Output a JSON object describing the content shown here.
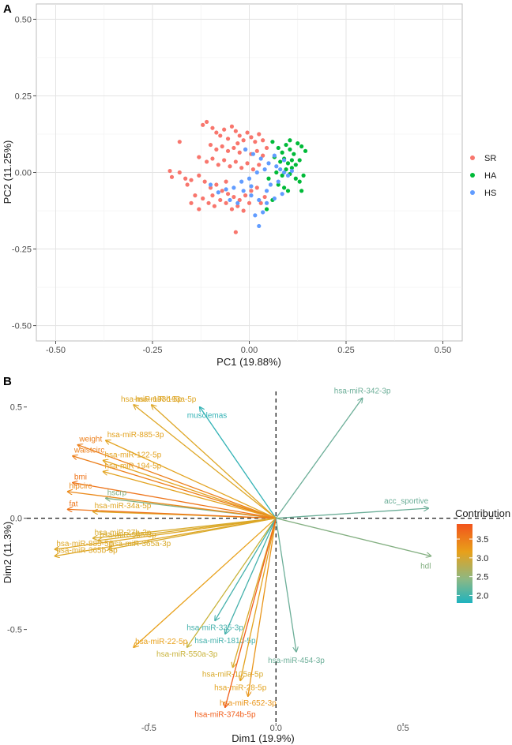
{
  "chart_data": [
    {
      "panel": "A",
      "type": "scatter",
      "xlabel": "PC1 (19.88%)",
      "ylabel": "PC2 (11.25%)",
      "xlim": [
        -0.55,
        0.55
      ],
      "ylim": [
        -0.55,
        0.55
      ],
      "x_ticks": [
        -0.5,
        -0.25,
        0,
        0.25,
        0.5
      ],
      "x_tick_labels": [
        "-0.50",
        "-0.25",
        "0.00",
        "0.25",
        "0.50"
      ],
      "y_ticks": [
        0.5,
        0.25,
        0,
        -0.25,
        -0.5
      ],
      "y_tick_labels": [
        "0.50",
        "0.25",
        "0.00",
        "-0.25",
        "-0.50"
      ],
      "grid": true,
      "legend_position": "right",
      "series": [
        {
          "name": "SR",
          "color": "#F8766D",
          "points": [
            [
              -0.12,
              0.155
            ],
            [
              -0.11,
              0.165
            ],
            [
              -0.095,
              0.145
            ],
            [
              -0.085,
              0.13
            ],
            [
              -0.075,
              0.12
            ],
            [
              -0.065,
              0.14
            ],
            [
              -0.055,
              0.11
            ],
            [
              -0.045,
              0.15
            ],
            [
              -0.035,
              0.135
            ],
            [
              -0.025,
              0.12
            ],
            [
              -0.015,
              0.105
            ],
            [
              -0.005,
              0.13
            ],
            [
              0.005,
              0.115
            ],
            [
              0.015,
              0.1
            ],
            [
              0.025,
              0.125
            ],
            [
              0.035,
              0.105
            ],
            [
              0.045,
              0.08
            ],
            [
              -0.1,
              0.09
            ],
            [
              -0.085,
              0.075
            ],
            [
              -0.07,
              0.085
            ],
            [
              -0.055,
              0.07
            ],
            [
              -0.04,
              0.08
            ],
            [
              -0.025,
              0.065
            ],
            [
              -0.01,
              0.075
            ],
            [
              0.005,
              0.06
            ],
            [
              0.02,
              0.07
            ],
            [
              0.035,
              0.055
            ],
            [
              -0.13,
              0.05
            ],
            [
              -0.11,
              0.035
            ],
            [
              -0.095,
              0.045
            ],
            [
              -0.08,
              0.025
            ],
            [
              -0.065,
              0.04
            ],
            [
              -0.05,
              0.02
            ],
            [
              -0.035,
              0.035
            ],
            [
              -0.02,
              0.015
            ],
            [
              -0.005,
              0.03
            ],
            [
              0.01,
              0.01
            ],
            [
              0.025,
              0.025
            ],
            [
              -0.205,
              0.005
            ],
            [
              -0.18,
              0.0
            ],
            [
              -0.165,
              -0.02
            ],
            [
              -0.15,
              -0.025
            ],
            [
              -0.2,
              -0.015
            ],
            [
              -0.13,
              -0.01
            ],
            [
              -0.115,
              -0.03
            ],
            [
              -0.1,
              -0.05
            ],
            [
              -0.085,
              -0.04
            ],
            [
              -0.07,
              -0.06
            ],
            [
              -0.055,
              -0.07
            ],
            [
              -0.04,
              -0.08
            ],
            [
              -0.025,
              -0.09
            ],
            [
              -0.01,
              -0.075
            ],
            [
              0.005,
              -0.06
            ],
            [
              0.02,
              -0.05
            ],
            [
              -0.12,
              -0.085
            ],
            [
              -0.105,
              -0.1
            ],
            [
              -0.09,
              -0.11
            ],
            [
              -0.075,
              -0.09
            ],
            [
              -0.06,
              -0.1
            ],
            [
              -0.045,
              -0.12
            ],
            [
              -0.03,
              -0.11
            ],
            [
              -0.015,
              -0.125
            ],
            [
              0.0,
              -0.1
            ],
            [
              -0.14,
              -0.075
            ],
            [
              -0.15,
              -0.1
            ],
            [
              -0.16,
              -0.04
            ],
            [
              -0.13,
              -0.12
            ],
            [
              -0.18,
              0.1
            ],
            [
              -0.035,
              -0.195
            ],
            [
              0.03,
              -0.1
            ],
            [
              0.04,
              -0.08
            ],
            [
              -0.095,
              -0.075
            ],
            [
              -0.06,
              -0.03
            ],
            [
              -0.03,
              0.095
            ]
          ]
        },
        {
          "name": "HA",
          "color": "#00BA38",
          "points": [
            [
              0.06,
              0.1
            ],
            [
              0.075,
              0.08
            ],
            [
              0.085,
              0.065
            ],
            [
              0.095,
              0.09
            ],
            [
              0.105,
              0.075
            ],
            [
              0.115,
              0.06
            ],
            [
              0.125,
              0.095
            ],
            [
              0.135,
              0.085
            ],
            [
              0.145,
              0.07
            ],
            [
              0.065,
              0.05
            ],
            [
              0.08,
              0.035
            ],
            [
              0.09,
              0.045
            ],
            [
              0.1,
              0.03
            ],
            [
              0.11,
              0.04
            ],
            [
              0.12,
              0.025
            ],
            [
              0.13,
              0.04
            ],
            [
              0.07,
              0.0
            ],
            [
              0.085,
              -0.01
            ],
            [
              0.095,
              0.01
            ],
            [
              0.105,
              -0.005
            ],
            [
              0.12,
              -0.02
            ],
            [
              0.13,
              -0.03
            ],
            [
              0.14,
              -0.01
            ],
            [
              0.075,
              -0.04
            ],
            [
              0.09,
              -0.05
            ],
            [
              0.1,
              -0.06
            ],
            [
              0.06,
              -0.09
            ],
            [
              0.045,
              -0.12
            ],
            [
              0.135,
              -0.06
            ],
            [
              0.105,
              0.105
            ],
            [
              0.05,
              -0.02
            ],
            [
              0.11,
              0.015
            ]
          ]
        },
        {
          "name": "HS",
          "color": "#619CFF",
          "points": [
            [
              -0.01,
              0.075
            ],
            [
              0.01,
              0.06
            ],
            [
              0.03,
              0.045
            ],
            [
              0.05,
              0.03
            ],
            [
              0.07,
              0.02
            ],
            [
              0.08,
              0.01
            ],
            [
              0.09,
              0.0
            ],
            [
              0.1,
              -0.01
            ],
            [
              0.11,
              0.005
            ],
            [
              0.04,
              0.01
            ],
            [
              0.02,
              0.0
            ],
            [
              0.0,
              -0.02
            ],
            [
              -0.02,
              -0.03
            ],
            [
              -0.04,
              -0.05
            ],
            [
              -0.06,
              -0.055
            ],
            [
              -0.08,
              -0.065
            ],
            [
              -0.015,
              -0.06
            ],
            [
              0.005,
              -0.075
            ],
            [
              0.025,
              -0.09
            ],
            [
              0.045,
              -0.1
            ],
            [
              0.065,
              -0.085
            ],
            [
              0.085,
              -0.07
            ],
            [
              -0.05,
              -0.09
            ],
            [
              -0.03,
              -0.1
            ],
            [
              0.015,
              -0.14
            ],
            [
              0.035,
              -0.13
            ],
            [
              0.055,
              -0.04
            ],
            [
              0.075,
              -0.03
            ],
            [
              -0.1,
              -0.04
            ],
            [
              0.005,
              -0.045
            ],
            [
              0.025,
              -0.175
            ],
            [
              0.09,
              0.04
            ],
            [
              0.065,
              0.055
            ],
            [
              0.045,
              -0.06
            ]
          ]
        }
      ]
    },
    {
      "panel": "B",
      "type": "biplot",
      "xlabel": "Dim1 (19.9%)",
      "ylabel": "Dim2 (11.3%)",
      "xlim": [
        -0.98,
        0.68
      ],
      "ylim": [
        -0.92,
        0.57
      ],
      "x_ticks": [
        -0.5,
        0,
        0.5
      ],
      "x_tick_labels": [
        "-0.5",
        "0.0",
        "0.5"
      ],
      "y_ticks": [
        0.5,
        0,
        -0.5
      ],
      "y_tick_labels": [
        "0.5",
        "0.0",
        "-0.5"
      ],
      "grid": false,
      "legend_title": "Contribution",
      "legend_ticks": [
        3.5,
        3.0,
        2.5,
        2.0
      ],
      "legend_tick_labels": [
        "3.5",
        "3.0",
        "2.5",
        "2.0"
      ],
      "legend_range": [
        1.8,
        3.9
      ],
      "gradient_colors": [
        "#E94B1B",
        "#E7B21A",
        "#5CB8AE",
        "#1FB3BF"
      ],
      "variables": [
        {
          "name": "hsa-miR-342-3p",
          "x": 0.34,
          "y": 0.54,
          "contrib": 2.2
        },
        {
          "name": "acc_sportive",
          "x": 0.6,
          "y": 0.045,
          "contrib": 2.2
        },
        {
          "name": "hdl",
          "x": 0.61,
          "y": -0.17,
          "contrib": 2.3
        },
        {
          "name": "musclemas",
          "x": -0.3,
          "y": 0.5,
          "contrib": 1.9
        },
        {
          "name": "hsa-miR-193b-5p",
          "x": -0.49,
          "y": 0.51,
          "contrib": 3.0
        },
        {
          "name": "hsa-miR-193a-5p",
          "x": -0.56,
          "y": 0.51,
          "contrib": 3.0
        },
        {
          "name": "hsa-miR-885-3p",
          "x": -0.67,
          "y": 0.35,
          "contrib": 3.1
        },
        {
          "name": "weight",
          "x": -0.78,
          "y": 0.33,
          "contrib": 3.5
        },
        {
          "name": "hsa-miR-122-5p",
          "x": -0.68,
          "y": 0.26,
          "contrib": 3.1
        },
        {
          "name": "waistcirc",
          "x": -0.8,
          "y": 0.28,
          "contrib": 3.5
        },
        {
          "name": "hsa-miR-194-5p",
          "x": -0.68,
          "y": 0.21,
          "contrib": 3.1
        },
        {
          "name": "bmi",
          "x": -0.8,
          "y": 0.16,
          "contrib": 3.6
        },
        {
          "name": "hsa-miR-34a-5p",
          "x": -0.72,
          "y": 0.03,
          "contrib": 3.0
        },
        {
          "name": "hscrp",
          "x": -0.67,
          "y": 0.09,
          "contrib": 2.3
        },
        {
          "name": "hipcirc",
          "x": -0.82,
          "y": 0.12,
          "contrib": 3.4
        },
        {
          "name": "fat",
          "x": -0.82,
          "y": 0.04,
          "contrib": 3.6
        },
        {
          "name": "hsa-miR-27b-3p",
          "x": -0.72,
          "y": -0.09,
          "contrib": 2.9
        },
        {
          "name": "hsa-miR-505-3p",
          "x": -0.7,
          "y": -0.1,
          "contrib": 2.9
        },
        {
          "name": "hsa-miR-365a-3p",
          "x": -0.66,
          "y": -0.14,
          "contrib": 2.9
        },
        {
          "name": "hsa-miR-885-5p",
          "x": -0.87,
          "y": -0.14,
          "contrib": 3.0
        },
        {
          "name": "hsa-miR-365b-3p",
          "x": -0.87,
          "y": -0.17,
          "contrib": 3.0
        },
        {
          "name": "hsa-miR-22-5p",
          "x": -0.56,
          "y": -0.58,
          "contrib": 3.2
        },
        {
          "name": "hsa-miR-550a-3p",
          "x": -0.35,
          "y": -0.58,
          "contrib": 2.6
        },
        {
          "name": "hsa-miR-335-3p",
          "x": -0.24,
          "y": -0.46,
          "contrib": 2.0
        },
        {
          "name": "hsa-miR-181d-5p",
          "x": -0.2,
          "y": -0.52,
          "contrib": 2.0
        },
        {
          "name": "hsa-miR-105a-5p",
          "x": -0.17,
          "y": -0.67,
          "contrib": 2.9
        },
        {
          "name": "hsa-miR-28-5p",
          "x": -0.14,
          "y": -0.73,
          "contrib": 3.1
        },
        {
          "name": "hsa-miR-652-3p",
          "x": -0.11,
          "y": -0.8,
          "contrib": 3.3
        },
        {
          "name": "hsa-miR-374b-5p",
          "x": -0.2,
          "y": -0.85,
          "contrib": 3.8
        },
        {
          "name": "hsa-miR-454-3p",
          "x": 0.08,
          "y": -0.6,
          "contrib": 2.2
        }
      ]
    }
  ]
}
